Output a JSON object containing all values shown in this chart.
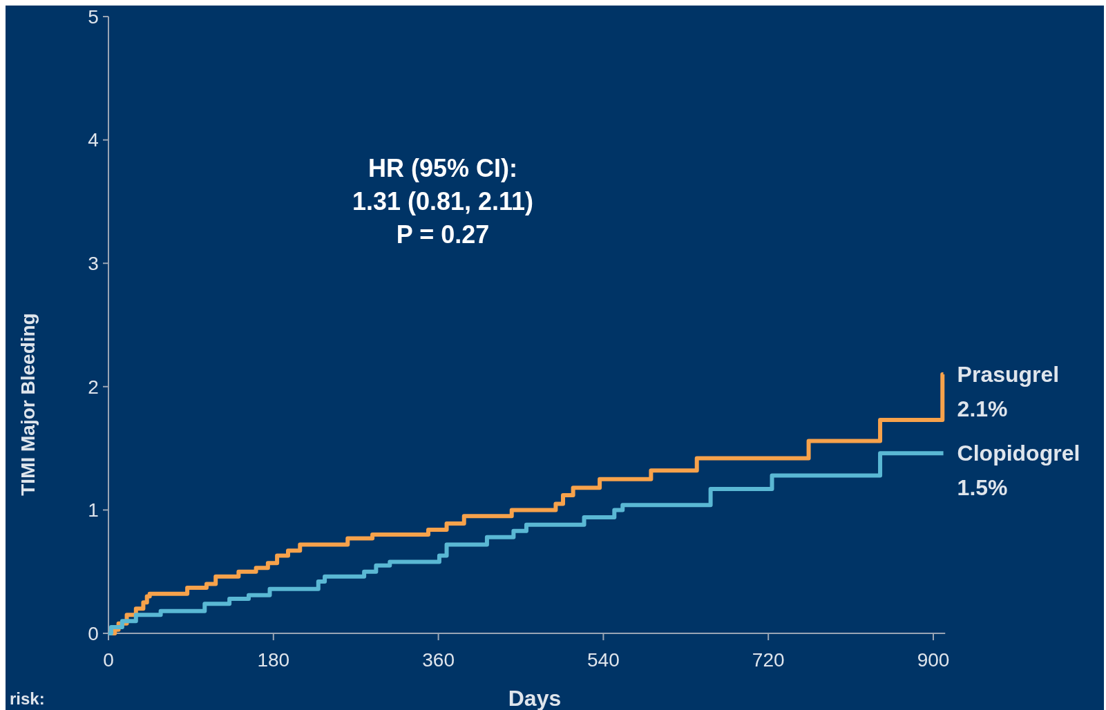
{
  "chart_data": {
    "type": "step",
    "xlabel": "Days",
    "ylabel": "TIMI Major Bleeding",
    "xlim": [
      0,
      913
    ],
    "ylim": [
      0,
      5
    ],
    "xticks": [
      0,
      180,
      360,
      540,
      720,
      900
    ],
    "yticks": [
      0,
      1,
      2,
      3,
      4,
      5
    ],
    "line_style": "solid",
    "series": [
      {
        "name": "Prasugrel",
        "color": "#f7a24b",
        "x": [
          0,
          7,
          11,
          20,
          30,
          38,
          42,
          45,
          86,
          107,
          117,
          142,
          161,
          174,
          184,
          196,
          209,
          261,
          288,
          349,
          369,
          388,
          440,
          488,
          496,
          507,
          536,
          592,
          642,
          764,
          842,
          910,
          911
        ],
        "values": [
          0,
          0.03,
          0.08,
          0.15,
          0.2,
          0.25,
          0.3,
          0.32,
          0.37,
          0.4,
          0.46,
          0.5,
          0.53,
          0.57,
          0.63,
          0.67,
          0.72,
          0.77,
          0.8,
          0.84,
          0.89,
          0.95,
          1.0,
          1.05,
          1.12,
          1.18,
          1.25,
          1.32,
          1.42,
          1.56,
          1.73,
          2.1,
          2.1
        ]
      },
      {
        "name": "Clopidogrel",
        "color": "#5ab8d4",
        "x": [
          0,
          3,
          15,
          30,
          57,
          105,
          132,
          153,
          176,
          229,
          236,
          279,
          292,
          307,
          361,
          369,
          413,
          442,
          456,
          519,
          552,
          561,
          657,
          724,
          842,
          911
        ],
        "values": [
          0,
          0.05,
          0.1,
          0.15,
          0.18,
          0.24,
          0.28,
          0.31,
          0.36,
          0.42,
          0.46,
          0.5,
          0.55,
          0.58,
          0.63,
          0.72,
          0.78,
          0.83,
          0.88,
          0.94,
          1.0,
          1.04,
          1.17,
          1.28,
          1.46,
          1.46
        ]
      }
    ],
    "annotations": [
      "HR (95% CI):",
      "1.31 (0.81, 2.11)",
      "P = 0.27",
      {
        "text": "2.1%",
        "x": 911,
        "y": 2.1
      },
      {
        "text": "1.5%",
        "x": 911,
        "y": 1.46
      },
      "risk:"
    ]
  }
}
